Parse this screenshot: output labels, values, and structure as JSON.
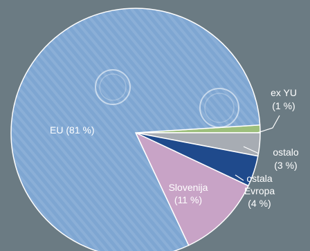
{
  "chart_data": {
    "type": "pie",
    "slices": [
      {
        "label": "EU (81 %)",
        "value": 81,
        "color": "#7ea6d2"
      },
      {
        "label": "Slovenija (11 %)",
        "value": 11,
        "color": "#c8a3c6"
      },
      {
        "label": "ostala Evropa (4 %)",
        "value": 4,
        "color": "#1f4a8c"
      },
      {
        "label": "ostalo (3 %)",
        "value": 3,
        "color": "#a7acb3"
      },
      {
        "label": "ex YU (1 %)",
        "value": 1,
        "color": "#9dbf7c"
      }
    ],
    "labels": {
      "eu": "EU (81 %)",
      "slovenija_1": "Slovenija",
      "slovenija_2": "(11 %)",
      "ostala_1": "ostala",
      "ostala_2": "Evropa",
      "ostala_3": "(4 %)",
      "ostalo_1": "ostalo",
      "ostalo_2": "(3 %)",
      "exyu_1": "ex YU",
      "exyu_2": "(1 %)"
    },
    "legend": "none",
    "grid": false
  }
}
